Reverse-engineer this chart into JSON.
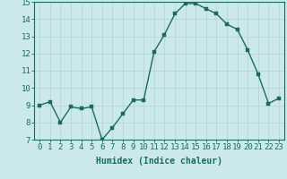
{
  "x": [
    0,
    1,
    2,
    3,
    4,
    5,
    6,
    7,
    8,
    9,
    10,
    11,
    12,
    13,
    14,
    15,
    16,
    17,
    18,
    19,
    20,
    21,
    22,
    23
  ],
  "y": [
    9.0,
    9.2,
    8.0,
    8.9,
    8.8,
    8.9,
    7.0,
    7.7,
    8.5,
    9.3,
    9.3,
    12.1,
    13.1,
    14.3,
    14.9,
    14.9,
    14.6,
    14.3,
    13.7,
    13.4,
    12.2,
    10.8,
    9.1,
    9.4
  ],
  "line_color": "#1a6b5e",
  "marker_color": "#1a6b5e",
  "bg_color": "#cce9e9",
  "grid_color": "#b8d4d4",
  "xlabel": "Humidex (Indice chaleur)",
  "ylim": [
    7,
    15
  ],
  "xlim_min": -0.5,
  "xlim_max": 23.5,
  "yticks": [
    7,
    8,
    9,
    10,
    11,
    12,
    13,
    14,
    15
  ],
  "xticks": [
    0,
    1,
    2,
    3,
    4,
    5,
    6,
    7,
    8,
    9,
    10,
    11,
    12,
    13,
    14,
    15,
    16,
    17,
    18,
    19,
    20,
    21,
    22,
    23
  ],
  "xlabel_fontsize": 7,
  "tick_fontsize": 6.5,
  "marker_size": 2.5,
  "line_width": 1.0
}
